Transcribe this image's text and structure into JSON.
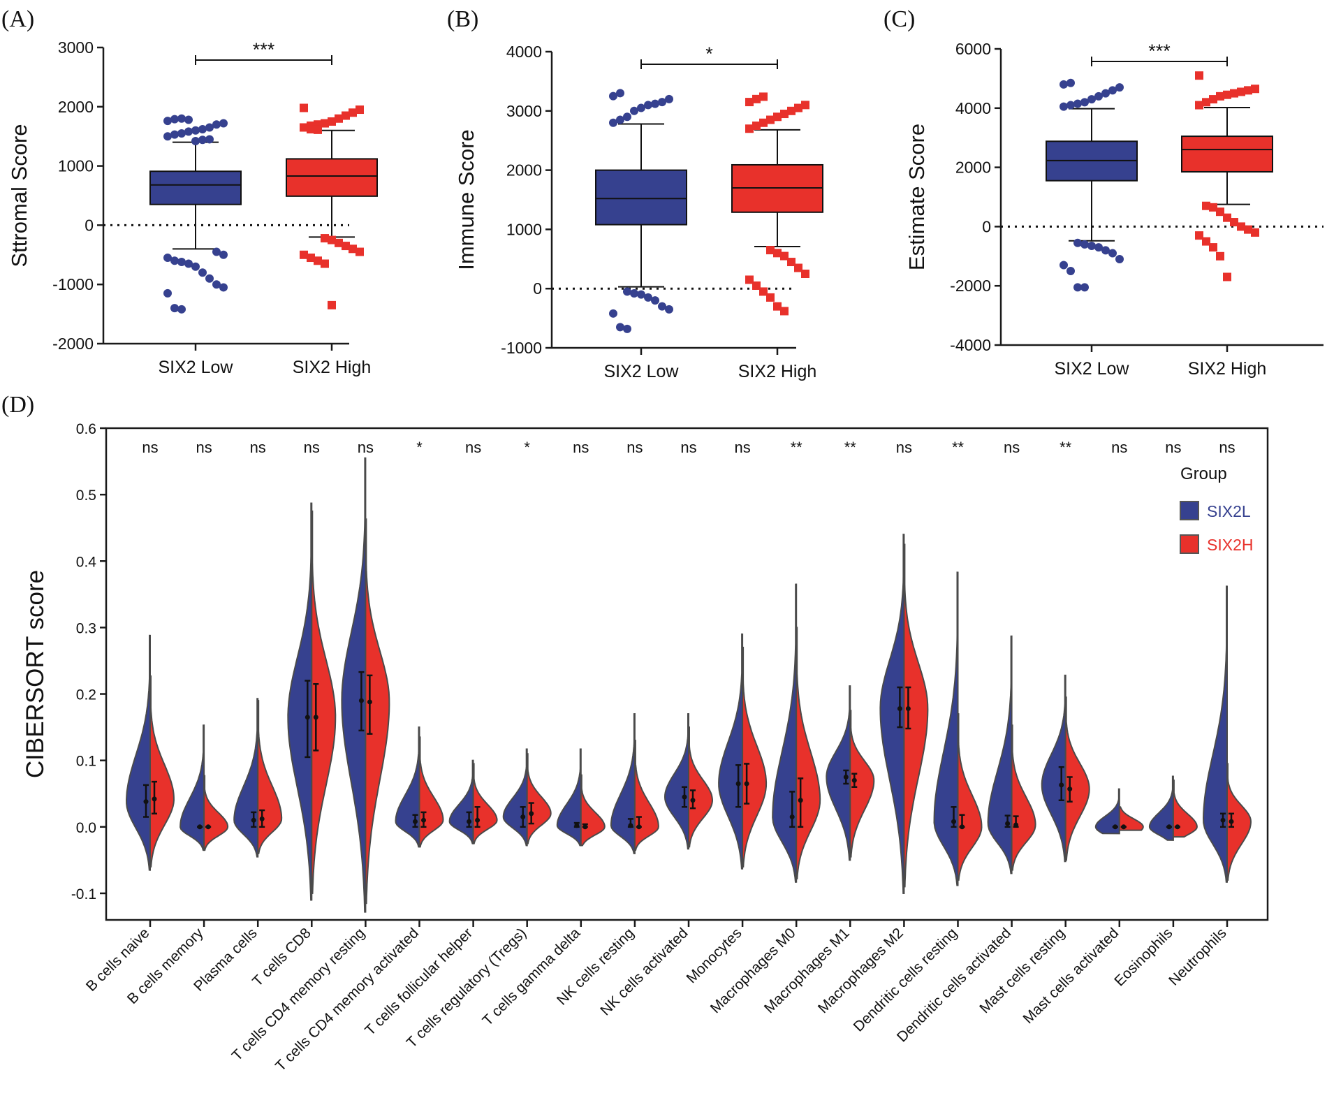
{
  "colors": {
    "low": "#36418f",
    "high": "#e8312b",
    "axis": "#1a1a1a",
    "outline": "#4a4a4a"
  },
  "chart_data": [
    {
      "panel": "(A)",
      "type": "box",
      "title": "",
      "xlabel": "",
      "ylabel": "Sttromal Score",
      "ylim": [
        -2000,
        3000
      ],
      "yticks": [
        -2000,
        -1000,
        0,
        1000,
        2000,
        3000
      ],
      "ytick_labels": [
        "-2000",
        "-1000",
        "0",
        "1000",
        "2000",
        "3000"
      ],
      "reference_line": 0,
      "significance": "***",
      "groups": [
        {
          "name": "SIX2 Low",
          "color": "#36418f",
          "marker": "circle",
          "q1": 350,
          "median": 680,
          "q3": 910,
          "whisker_low": -400,
          "whisker_high": 1400,
          "outliers": [
            1500,
            1530,
            1550,
            1580,
            1600,
            1620,
            1650,
            1700,
            1720,
            1760,
            1790,
            1800,
            1780,
            1420,
            1440,
            1450,
            -450,
            -500,
            -550,
            -600,
            -620,
            -650,
            -700,
            -800,
            -900,
            -1000,
            -1050,
            -1150,
            -1400,
            -1420
          ]
        },
        {
          "name": "SIX2 High",
          "color": "#e8312b",
          "marker": "square",
          "q1": 490,
          "median": 830,
          "q3": 1120,
          "whisker_low": -200,
          "whisker_high": 1600,
          "outliers": [
            1650,
            1680,
            1700,
            1720,
            1750,
            1800,
            1850,
            1900,
            1950,
            1980,
            1620,
            1610,
            -220,
            -250,
            -300,
            -350,
            -400,
            -450,
            -500,
            -550,
            -600,
            -650,
            -1350
          ]
        }
      ]
    },
    {
      "panel": "(B)",
      "type": "box",
      "title": "",
      "xlabel": "",
      "ylabel": "Immune Score",
      "ylim": [
        -1000,
        4000
      ],
      "yticks": [
        -1000,
        0,
        1000,
        2000,
        3000,
        4000
      ],
      "ytick_labels": [
        "-1000",
        "0",
        "1000",
        "2000",
        "3000",
        "4000"
      ],
      "reference_line": 0,
      "significance": "*",
      "groups": [
        {
          "name": "SIX2 Low",
          "color": "#36418f",
          "marker": "circle",
          "q1": 1080,
          "median": 1520,
          "q3": 2000,
          "whisker_low": 30,
          "whisker_high": 2780,
          "outliers": [
            2800,
            2850,
            2900,
            3000,
            3050,
            3100,
            3120,
            3150,
            3200,
            3250,
            3300,
            -50,
            -80,
            -100,
            -150,
            -200,
            -300,
            -350,
            -420,
            -650,
            -680
          ]
        },
        {
          "name": "SIX2 High",
          "color": "#e8312b",
          "marker": "square",
          "q1": 1290,
          "median": 1700,
          "q3": 2090,
          "whisker_low": 710,
          "whisker_high": 2680,
          "outliers": [
            2700,
            2750,
            2800,
            2850,
            2900,
            2950,
            3000,
            3050,
            3100,
            3150,
            3200,
            3240,
            650,
            600,
            550,
            450,
            350,
            250,
            150,
            50,
            -50,
            -150,
            -300,
            -380
          ]
        }
      ]
    },
    {
      "panel": "(C)",
      "type": "box",
      "title": "",
      "xlabel": "",
      "ylabel": "Estimate Score",
      "ylim": [
        -4000,
        6000
      ],
      "yticks": [
        -4000,
        -2000,
        0,
        2000,
        4000,
        6000
      ],
      "ytick_labels": [
        "-4000",
        "-2000",
        "0",
        "2000",
        "4000",
        "6000"
      ],
      "reference_line": 0,
      "significance": "***",
      "groups": [
        {
          "name": "SIX2 Low",
          "color": "#36418f",
          "marker": "circle",
          "q1": 1550,
          "median": 2230,
          "q3": 2880,
          "whisker_low": -480,
          "whisker_high": 3980,
          "outliers": [
            4050,
            4100,
            4150,
            4200,
            4300,
            4400,
            4500,
            4600,
            4700,
            4800,
            4850,
            -550,
            -600,
            -650,
            -700,
            -800,
            -900,
            -1100,
            -1300,
            -1500,
            -2050,
            -2050
          ]
        },
        {
          "name": "SIX2 High",
          "color": "#e8312b",
          "marker": "square",
          "q1": 1850,
          "median": 2600,
          "q3": 3050,
          "whisker_low": 750,
          "whisker_high": 4020,
          "outliers": [
            4100,
            4200,
            4300,
            4400,
            4450,
            4500,
            4550,
            4600,
            4650,
            5100,
            700,
            650,
            500,
            300,
            150,
            0,
            -100,
            -200,
            -300,
            -500,
            -700,
            -1000,
            -1700
          ]
        }
      ]
    },
    {
      "panel": "(D)",
      "type": "violin",
      "title": "",
      "xlabel": "",
      "ylabel": "CIBERSORT score",
      "ylim": [
        -0.14,
        0.6
      ],
      "yticks": [
        -0.1,
        0.0,
        0.1,
        0.2,
        0.3,
        0.4,
        0.5,
        0.6
      ],
      "ytick_labels": [
        "-0.1",
        "0.0",
        "0.1",
        "0.2",
        "0.3",
        "0.4",
        "0.5",
        "0.6"
      ],
      "legend": {
        "title": "Group",
        "position": "top-right",
        "entries": [
          {
            "label": "SIX2L",
            "color": "#36418f"
          },
          {
            "label": "SIX2H",
            "color": "#e8312b"
          }
        ]
      },
      "categories": [
        "B cells naive",
        "B cells memory",
        "Plasma cells",
        "T cells CD8",
        "T cells CD4 memory resting",
        "T cells CD4 memory activated",
        "T cells follicular helper",
        "T cells regulatory (Tregs)",
        "T cells gamma delta",
        "NK cells resting",
        "NK cells activated",
        "Monocytes",
        "Macrophages M0",
        "Macrophages M1",
        "Macrophages M2",
        "Dendritic cells resting",
        "Dendritic cells activated",
        "Mast cells resting",
        "Mast cells activated",
        "Eosinophils",
        "Neutrophils"
      ],
      "significance": [
        "ns",
        "ns",
        "ns",
        "ns",
        "ns",
        "*",
        "ns",
        "*",
        "ns",
        "ns",
        "ns",
        "ns",
        "**",
        "**",
        "ns",
        "**",
        "ns",
        "**",
        "ns",
        "ns",
        "ns"
      ],
      "series": [
        {
          "name": "SIX2L",
          "median": [
            0.038,
            0.0,
            0.01,
            0.165,
            0.19,
            0.008,
            0.008,
            0.015,
            0.002,
            0.002,
            0.045,
            0.065,
            0.015,
            0.075,
            0.178,
            0.008,
            0.005,
            0.063,
            0.0,
            0.0,
            0.01
          ],
          "q1": [
            0.015,
            0.0,
            0.0,
            0.105,
            0.145,
            0.0,
            0.0,
            0.0,
            0.0,
            0.0,
            0.03,
            0.03,
            0.0,
            0.065,
            0.15,
            0.0,
            0.0,
            0.04,
            0.0,
            0.0,
            0.0
          ],
          "q3": [
            0.063,
            0.0,
            0.022,
            0.22,
            0.233,
            0.018,
            0.022,
            0.03,
            0.006,
            0.012,
            0.06,
            0.093,
            0.053,
            0.085,
            0.21,
            0.03,
            0.017,
            0.09,
            0.0,
            0.0,
            0.02
          ],
          "min": [
            -0.065,
            -0.035,
            -0.045,
            -0.11,
            -0.128,
            -0.03,
            -0.025,
            -0.028,
            -0.028,
            -0.04,
            -0.033,
            -0.063,
            -0.083,
            -0.05,
            -0.1,
            -0.088,
            -0.07,
            -0.052,
            -0.01,
            -0.02,
            -0.083
          ],
          "max": [
            0.288,
            0.153,
            0.193,
            0.487,
            0.555,
            0.15,
            0.1,
            0.117,
            0.117,
            0.17,
            0.17,
            0.29,
            0.365,
            0.212,
            0.44,
            0.383,
            0.287,
            0.228,
            0.057,
            0.076,
            0.362
          ]
        },
        {
          "name": "SIX2H",
          "median": [
            0.042,
            0.0,
            0.012,
            0.165,
            0.188,
            0.01,
            0.01,
            0.02,
            0.0,
            0.0,
            0.04,
            0.065,
            0.04,
            0.07,
            0.178,
            0.0,
            0.003,
            0.057,
            0.0,
            0.0,
            0.008
          ],
          "q1": [
            0.02,
            0.0,
            0.0,
            0.115,
            0.14,
            0.0,
            0.0,
            0.005,
            0.0,
            0.0,
            0.028,
            0.035,
            0.0,
            0.06,
            0.148,
            0.0,
            0.0,
            0.038,
            0.0,
            0.0,
            0.0
          ],
          "q3": [
            0.068,
            0.0,
            0.025,
            0.215,
            0.228,
            0.022,
            0.03,
            0.036,
            0.004,
            0.015,
            0.055,
            0.095,
            0.073,
            0.08,
            0.21,
            0.018,
            0.016,
            0.075,
            0.0,
            0.0,
            0.02
          ],
          "min": [
            -0.06,
            -0.035,
            -0.04,
            -0.1,
            -0.115,
            -0.03,
            -0.025,
            -0.025,
            -0.028,
            -0.035,
            -0.03,
            -0.06,
            -0.078,
            -0.045,
            -0.09,
            -0.08,
            -0.065,
            -0.05,
            -0.005,
            -0.015,
            -0.08
          ],
          "max": [
            0.227,
            0.077,
            0.19,
            0.475,
            0.463,
            0.135,
            0.095,
            0.11,
            0.078,
            0.13,
            0.15,
            0.27,
            0.3,
            0.175,
            0.425,
            0.17,
            0.153,
            0.195,
            0.03,
            0.07,
            0.095
          ]
        }
      ]
    }
  ]
}
